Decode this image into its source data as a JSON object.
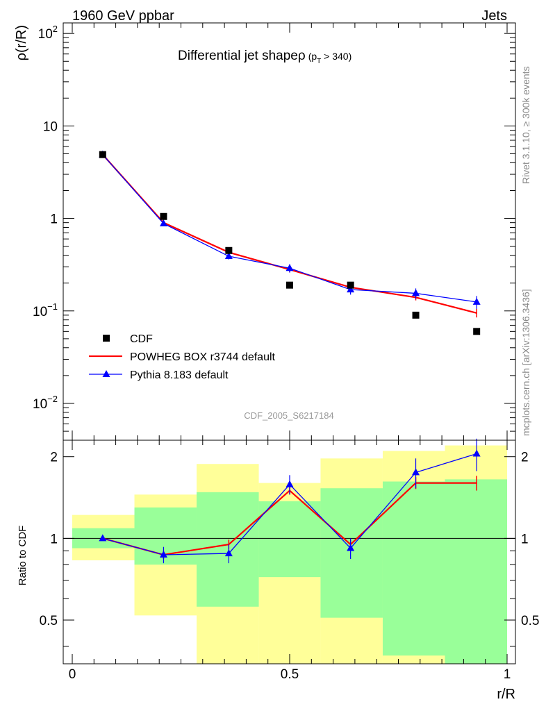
{
  "header": {
    "left": "1960 GeV ppbar",
    "right": "Jets"
  },
  "side_labels": {
    "rivet": "Rivet 3.1.10, ≥ 300k events",
    "mcplots": "mcplots.cern.ch [arXiv:1306.3436]"
  },
  "watermark": "CDF_2005_S6217184",
  "chart_data": [
    {
      "type": "scatter",
      "title_main": "Differential jet shapeρ",
      "title_sub": "(p",
      "title_subscript": "T",
      "title_cut": " > 340)",
      "ylabel": "ρ(r/R)",
      "yscale": "log",
      "ylim": [
        0.004,
        130
      ],
      "xlim": [
        0,
        1
      ],
      "ytick_labels": [
        {
          "value": 100,
          "base": "10",
          "exp": "2"
        },
        {
          "value": 10,
          "base": "10",
          "exp": ""
        },
        {
          "value": 1,
          "base": "1",
          "exp": ""
        },
        {
          "value": 0.1,
          "base": "10",
          "exp": "−1"
        },
        {
          "value": 0.01,
          "base": "10",
          "exp": "−2"
        }
      ],
      "legend": [
        {
          "label": "CDF",
          "color": "#000000",
          "marker": "square"
        },
        {
          "label": "POWHEG BOX r3744 default",
          "color": "#ff0000",
          "marker": "line"
        },
        {
          "label": "Pythia 8.183 default",
          "color": "#0000ff",
          "marker": "triangle"
        }
      ],
      "x": [
        0.07,
        0.21,
        0.36,
        0.5,
        0.64,
        0.79,
        0.93
      ],
      "series": [
        {
          "name": "CDF",
          "values": [
            4.9,
            1.05,
            0.45,
            0.19,
            0.19,
            0.09,
            0.06
          ],
          "color": "#000000"
        },
        {
          "name": "POWHEG BOX r3744 default",
          "values": [
            4.9,
            0.9,
            0.43,
            0.28,
            0.18,
            0.14,
            0.095
          ],
          "errors": [
            0,
            0.02,
            0.02,
            0.02,
            0.01,
            0.01,
            0.01
          ],
          "color": "#ff0000"
        },
        {
          "name": "Pythia 8.183 default",
          "values": [
            4.9,
            0.88,
            0.39,
            0.29,
            0.17,
            0.155,
            0.125
          ],
          "errors": [
            0,
            0.03,
            0.03,
            0.03,
            0.02,
            0.02,
            0.02
          ],
          "color": "#0000ff"
        }
      ]
    },
    {
      "type": "line",
      "ylabel": "Ratio to CDF",
      "xlabel": "r/R",
      "yscale": "log",
      "ylim": [
        0.345,
        2.3
      ],
      "xlim": [
        0,
        1
      ],
      "xtick_labels": [
        "0",
        "0.5",
        "1"
      ],
      "ytick_labels": [
        "2",
        "1",
        "0.5"
      ],
      "ytick_values": [
        2,
        1,
        0.5
      ],
      "x": [
        0.07,
        0.21,
        0.36,
        0.5,
        0.64,
        0.79,
        0.93
      ],
      "band_edges": [
        0,
        0.143,
        0.286,
        0.429,
        0.571,
        0.714,
        0.857,
        1.0
      ],
      "band_outer": [
        [
          0.83,
          1.22
        ],
        [
          0.52,
          1.45
        ],
        [
          0.35,
          1.88
        ],
        [
          0.35,
          1.6
        ],
        [
          0.35,
          1.97
        ],
        [
          0.35,
          2.1
        ],
        [
          0.35,
          2.2
        ]
      ],
      "band_inner": [
        [
          0.92,
          1.09
        ],
        [
          0.8,
          1.3
        ],
        [
          0.56,
          1.48
        ],
        [
          0.72,
          1.37
        ],
        [
          0.51,
          1.53
        ],
        [
          0.37,
          1.62
        ],
        [
          0.35,
          1.65
        ]
      ],
      "series": [
        {
          "name": "POWHEG BOX r3744 default",
          "values": [
            1.0,
            0.87,
            0.95,
            1.5,
            0.95,
            1.6,
            1.6
          ],
          "errors": [
            0,
            0.03,
            0.04,
            0.05,
            0.04,
            0.08,
            0.1
          ],
          "color": "#ff0000"
        },
        {
          "name": "Pythia 8.183 default",
          "values": [
            1.0,
            0.87,
            0.88,
            1.58,
            0.92,
            1.75,
            2.05
          ],
          "errors": [
            0,
            0.06,
            0.07,
            0.13,
            0.08,
            0.22,
            0.28
          ],
          "color": "#0000ff"
        }
      ]
    }
  ]
}
